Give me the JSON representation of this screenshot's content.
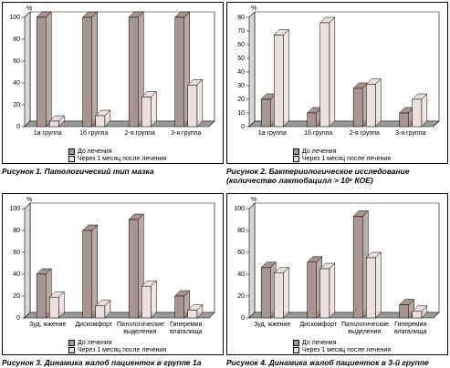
{
  "chart_data": [
    {
      "type": "bar",
      "title": "Рисунок 1. Патологический тип мазка",
      "y_label": "%",
      "categories": [
        "1а группа",
        "1б группа",
        "2-я группа",
        "3-я группа"
      ],
      "series": [
        {
          "name": "До лечения",
          "color": "#a8958f",
          "values": [
            100,
            100,
            100,
            100
          ]
        },
        {
          "name": "Через 1 месяц после лечения",
          "color": "#ebe0de",
          "values": [
            5,
            10,
            27,
            38
          ]
        }
      ],
      "ylim": [
        0,
        100
      ],
      "yticks": [
        0,
        20,
        40,
        60,
        80,
        100
      ]
    },
    {
      "type": "bar",
      "title": "Рисунок 2. Бактериологическое исследование (количество лактобацилл > 10⁶ КОЕ)",
      "y_label": "%",
      "categories": [
        "1а группа",
        "1б группа",
        "2-я группа",
        "3-я группа"
      ],
      "series": [
        {
          "name": "До лечения",
          "color": "#a8958f",
          "values": [
            20,
            10,
            28,
            10
          ]
        },
        {
          "name": "Через 1 месяц после лечения",
          "color": "#ebe0de",
          "values": [
            67,
            76,
            31,
            20
          ]
        }
      ],
      "ylim": [
        0,
        80
      ],
      "yticks": [
        0,
        10,
        20,
        30,
        40,
        50,
        60,
        70,
        80
      ]
    },
    {
      "type": "bar",
      "title": "Рисунок 3. Динамика жалоб пациенток в группе 1а",
      "y_label": "%",
      "categories": [
        "Зуд, жжение",
        "Дискомфорт",
        "Патологические выделения",
        "Гиперемия влагалища"
      ],
      "series": [
        {
          "name": "До лечения",
          "color": "#a8958f",
          "values": [
            40,
            80,
            90,
            20
          ]
        },
        {
          "name": "Через 1 месяц после лечения",
          "color": "#ebe0de",
          "values": [
            19,
            11,
            29,
            7
          ]
        }
      ],
      "ylim": [
        0,
        100
      ],
      "yticks": [
        0,
        20,
        40,
        60,
        80,
        100
      ]
    },
    {
      "type": "bar",
      "title": "Рисунок 4. Динамика жалоб пациенток в 3-й группе",
      "y_label": "%",
      "categories": [
        "Зуд, жжение",
        "Дискомфорт",
        "Патологические выделения",
        "Гиперемия влагалища"
      ],
      "series": [
        {
          "name": "До лечения",
          "color": "#a8958f",
          "values": [
            46,
            51,
            93,
            12
          ]
        },
        {
          "name": "Через 1 месяц после лечения",
          "color": "#ebe0de",
          "values": [
            41,
            45,
            55,
            6
          ]
        }
      ],
      "ylim": [
        0,
        100
      ],
      "yticks": [
        0,
        20,
        40,
        60,
        80,
        100
      ]
    }
  ]
}
